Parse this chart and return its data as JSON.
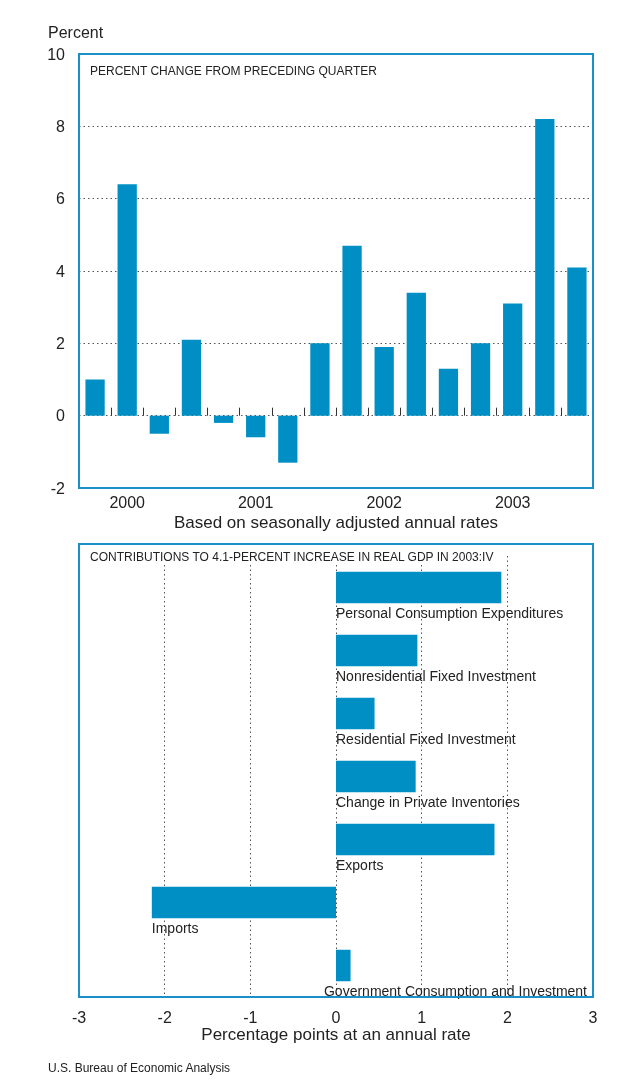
{
  "chart_data": [
    {
      "type": "bar",
      "title": "PERCENT CHANGE FROM PRECEDING QUARTER",
      "ylabel": "Percent",
      "xlabel": "Based on seasonally adjusted annual rates",
      "categories": [
        null,
        "2000",
        null,
        null,
        null,
        "2001",
        null,
        null,
        null,
        "2002",
        null,
        null,
        null,
        "2003",
        null,
        null
      ],
      "values": [
        1.0,
        6.4,
        -0.5,
        2.1,
        -0.2,
        -0.6,
        -1.3,
        2.0,
        4.7,
        1.9,
        3.4,
        1.3,
        2.0,
        3.1,
        8.2,
        4.1
      ],
      "color": "#008fc5",
      "ylim": [
        -2,
        10
      ],
      "yticks": [
        -2,
        0,
        2,
        4,
        6,
        8,
        10
      ],
      "grid": "y"
    },
    {
      "type": "bar",
      "orientation": "horizontal",
      "title": "CONTRIBUTIONS TO 4.1-PERCENT INCREASE IN REAL GDP IN 2003:IV",
      "xlabel": "Percentage points at an annual rate",
      "categories": [
        "Personal Consumption Expenditures",
        "Nonresidential Fixed Investment",
        "Residential Fixed Investment",
        "Change in Private Inventories",
        "Exports",
        "Imports",
        "Government Consumption and Investment"
      ],
      "values": [
        1.93,
        0.95,
        0.45,
        0.93,
        1.85,
        -2.15,
        0.17
      ],
      "color": "#008fc5",
      "xlim": [
        -3,
        3
      ],
      "xticks": [
        -3,
        -2,
        -1,
        0,
        1,
        2,
        3
      ],
      "grid": "x",
      "tick_labels": "x",
      "annotations": [
        "U.S. Bureau of Economic Analysis"
      ]
    }
  ]
}
